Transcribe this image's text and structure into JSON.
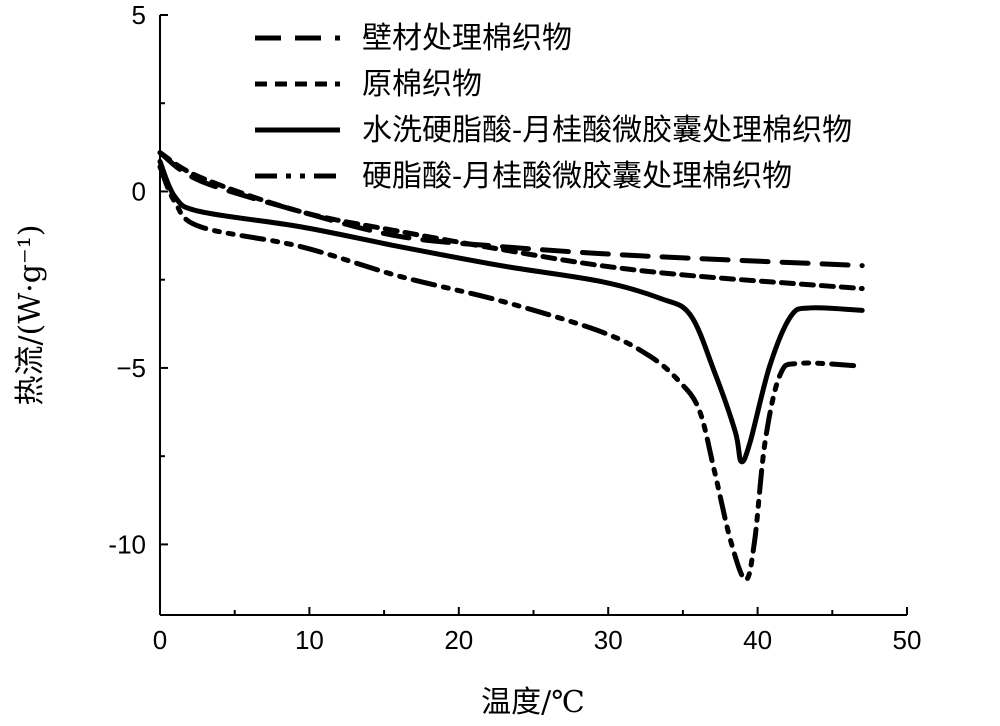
{
  "chart_data": {
    "type": "line",
    "title": "",
    "xlabel": "温度/℃",
    "ylabel": "热流/(W·g⁻¹)",
    "xlim": [
      0,
      50
    ],
    "ylim": [
      -12,
      5
    ],
    "xticks": [
      0,
      10,
      20,
      30,
      40,
      50
    ],
    "yticks": [
      5,
      0,
      -5,
      -10
    ],
    "xtick_labels": [
      "0",
      "10",
      "20",
      "30",
      "40",
      "50"
    ],
    "ytick_labels": [
      "5",
      "0",
      "−5",
      "-10"
    ],
    "grid": false,
    "legend_position": "top",
    "series": [
      {
        "name": "壁材处理棉织物",
        "style": "long-dash",
        "x": [
          0,
          2.7,
          9.4,
          16,
          22.8,
          29.5,
          36,
          47
        ],
        "y": [
          1.1,
          0.3,
          -0.57,
          -1.27,
          -1.56,
          -1.76,
          -1.9,
          -2.1
        ]
      },
      {
        "name": "原棉织物",
        "style": "short-dash",
        "x": [
          0,
          2.7,
          9.4,
          16,
          22.8,
          29.5,
          36,
          47
        ],
        "y": [
          1.1,
          0.4,
          -0.57,
          -1.13,
          -1.64,
          -2.1,
          -2.4,
          -2.75
        ]
      },
      {
        "name": "水洗硬脂酸-月桂酸微胶囊处理棉织物",
        "style": "solid",
        "x": [
          0,
          1,
          2.7,
          9.4,
          16,
          22.8,
          29.5,
          33.5,
          35.5,
          37.1,
          38.5,
          38.9,
          39.5,
          40.8,
          42.2,
          43.5,
          47
        ],
        "y": [
          0.85,
          -0.15,
          -0.57,
          -1.0,
          -1.56,
          -2.1,
          -2.55,
          -3.03,
          -3.5,
          -5.1,
          -6.8,
          -7.65,
          -7.1,
          -4.96,
          -3.55,
          -3.3,
          -3.37
        ]
      },
      {
        "name": "硬脂酸-月桂酸微胶囊处理棉织物",
        "style": "dash-dot-dot",
        "x": [
          0,
          1,
          2.7,
          9.4,
          16,
          22.8,
          29.5,
          32.8,
          34.8,
          36.1,
          37.1,
          38.2,
          39.2,
          39.8,
          40.5,
          41.5,
          42.8,
          47
        ],
        "y": [
          0.7,
          -0.3,
          -1.0,
          -1.56,
          -2.4,
          -3.1,
          -3.97,
          -4.67,
          -5.4,
          -6.2,
          -7.9,
          -9.9,
          -11.0,
          -9.9,
          -7.1,
          -5.2,
          -4.87,
          -4.95
        ]
      }
    ]
  }
}
